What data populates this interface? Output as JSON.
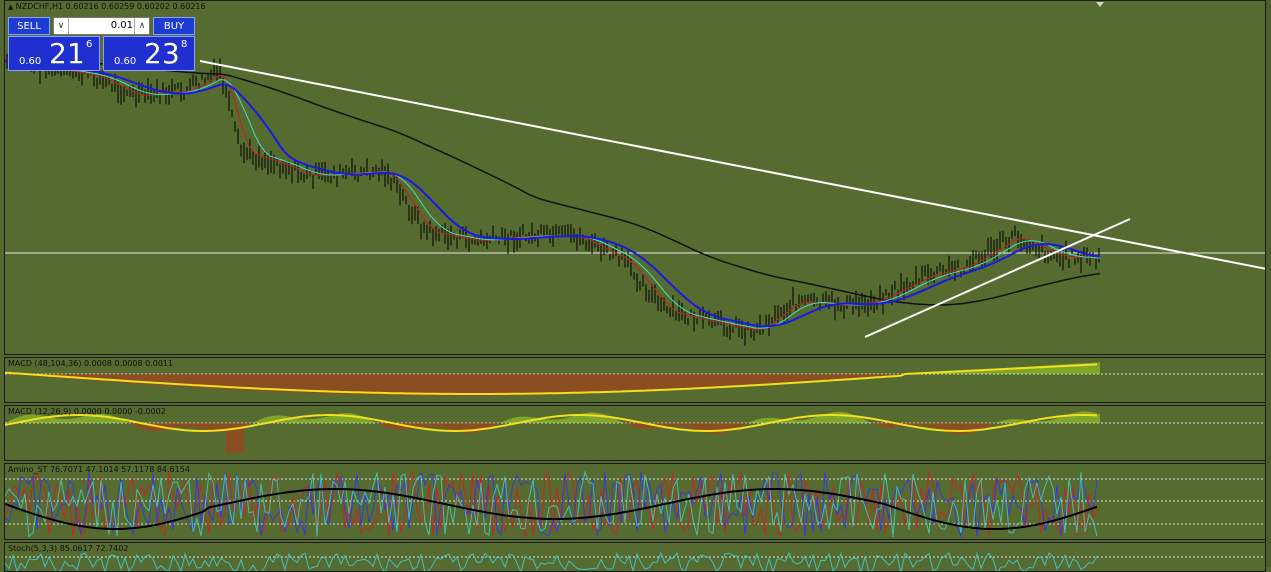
{
  "main_chart": {
    "header": "NZDCHF,H1  0.60216 0.60259 0.60202 0.60216"
  },
  "trade_panel": {
    "sell_label": "SELL",
    "buy_label": "BUY",
    "lot_value": "0.01",
    "sell_price_prefix": "0.60",
    "sell_price_main": "21",
    "sell_price_sup": "6",
    "buy_price_prefix": "0.60",
    "buy_price_main": "23",
    "buy_price_sup": "8"
  },
  "indicators": [
    {
      "label": "MACD (48,104,36) 0.0008 0.0008 0.0011"
    },
    {
      "label": "MACD (12,26,9) 0.0000 0.0000 -0.0002"
    },
    {
      "label": "Amino_ST 76.7071 47.1014 57.1178 84.6154"
    },
    {
      "label": "Stoch(5,3,3) 85.0617 72.7402"
    }
  ],
  "colors": {
    "background": "#566b30",
    "price_bars": "#000000",
    "ma_black": "#111111",
    "ma_blue": "#1a1ae6",
    "ma_cyan": "#40e0c0",
    "ma_red": "#c02020",
    "trendline": "#ffffff",
    "macd_pos": "#a8e020",
    "macd_neg": "#c03010",
    "signal": "#f0e020"
  }
}
